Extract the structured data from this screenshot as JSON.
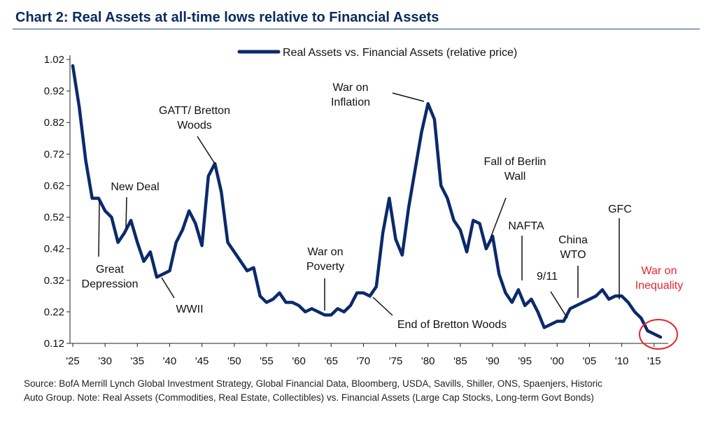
{
  "title": "Chart 2: Real Assets at all-time lows relative to Financial Assets",
  "source_line1": "Source: BofA Merrill Lynch Global Investment Strategy, Global Financial Data, Bloomberg, USDA, Savills, Shiller, ONS, Spaenjers, Historic",
  "source_line2": "Auto Group. Note: Real Assets (Commodities, Real Estate, Collectibles) vs. Financial Assets (Large Cap Stocks, Long-term Govt Bonds)",
  "colors": {
    "line": "#0b2a6b",
    "title": "#0b2a60",
    "highlight": "#e8252c"
  },
  "chart_data": {
    "type": "line",
    "title": "Chart 2: Real Assets at all-time lows relative to Financial Assets",
    "xlabel": "",
    "ylabel": "",
    "xlim": [
      1925,
      2016
    ],
    "ylim": [
      0.12,
      1.02
    ],
    "yticks": [
      1.02,
      0.92,
      0.82,
      0.72,
      0.62,
      0.52,
      0.42,
      0.32,
      0.22,
      0.12
    ],
    "ytick_labels": [
      "1.02",
      "0.92",
      "0.82",
      "0.72",
      "0.62",
      "0.52",
      "0.42",
      "0.32",
      "0.22",
      "0.12"
    ],
    "xticks": [
      1925,
      1930,
      1935,
      1940,
      1945,
      1950,
      1955,
      1960,
      1965,
      1970,
      1975,
      1980,
      1985,
      1990,
      1995,
      2000,
      2005,
      2010,
      2015
    ],
    "xtick_labels": [
      "'25",
      "'30",
      "'35",
      "'40",
      "'45",
      "'50",
      "'55",
      "'60",
      "'65",
      "'70",
      "'75",
      "'80",
      "'85",
      "'90",
      "'95",
      "'00",
      "'05",
      "'10",
      "'15"
    ],
    "grid": false,
    "legend_position": "top-center",
    "series": [
      {
        "name": "Real Assets vs. Financial Assets (relative price)",
        "x": [
          1925,
          1926,
          1927,
          1928,
          1929,
          1930,
          1931,
          1932,
          1933,
          1934,
          1935,
          1936,
          1937,
          1938,
          1939,
          1940,
          1941,
          1942,
          1943,
          1944,
          1945,
          1946,
          1947,
          1948,
          1949,
          1950,
          1951,
          1952,
          1953,
          1954,
          1955,
          1956,
          1957,
          1958,
          1959,
          1960,
          1961,
          1962,
          1963,
          1964,
          1965,
          1966,
          1967,
          1968,
          1969,
          1970,
          1971,
          1972,
          1973,
          1974,
          1975,
          1976,
          1977,
          1978,
          1979,
          1980,
          1981,
          1982,
          1983,
          1984,
          1985,
          1986,
          1987,
          1988,
          1989,
          1990,
          1991,
          1992,
          1993,
          1994,
          1995,
          1996,
          1997,
          1998,
          1999,
          2000,
          2001,
          2002,
          2003,
          2004,
          2005,
          2006,
          2007,
          2008,
          2009,
          2010,
          2011,
          2012,
          2013,
          2014,
          2015,
          2016
        ],
        "y": [
          1.0,
          0.87,
          0.7,
          0.58,
          0.58,
          0.54,
          0.52,
          0.44,
          0.47,
          0.51,
          0.44,
          0.38,
          0.41,
          0.33,
          0.34,
          0.35,
          0.44,
          0.48,
          0.54,
          0.5,
          0.43,
          0.65,
          0.69,
          0.6,
          0.44,
          0.41,
          0.38,
          0.35,
          0.36,
          0.27,
          0.25,
          0.26,
          0.28,
          0.25,
          0.25,
          0.24,
          0.22,
          0.23,
          0.22,
          0.21,
          0.21,
          0.23,
          0.22,
          0.24,
          0.28,
          0.28,
          0.27,
          0.3,
          0.47,
          0.58,
          0.45,
          0.4,
          0.55,
          0.67,
          0.79,
          0.88,
          0.83,
          0.62,
          0.58,
          0.51,
          0.48,
          0.41,
          0.51,
          0.5,
          0.42,
          0.46,
          0.34,
          0.28,
          0.25,
          0.29,
          0.24,
          0.26,
          0.22,
          0.17,
          0.18,
          0.19,
          0.19,
          0.23,
          0.24,
          0.25,
          0.26,
          0.27,
          0.29,
          0.26,
          0.27,
          0.27,
          0.25,
          0.22,
          0.2,
          0.16,
          0.15,
          0.14
        ]
      }
    ],
    "annotations": [
      {
        "text": "Great|Depression",
        "x": 1929,
        "y": 0.58
      },
      {
        "text": "New Deal",
        "x": 1933,
        "y": 0.44
      },
      {
        "text": "GATT/ Bretton|Woods",
        "x": 1947,
        "y": 0.69
      },
      {
        "text": "WWII",
        "x": 1941,
        "y": 0.35
      },
      {
        "text": "War on|Poverty",
        "x": 1964,
        "y": 0.21
      },
      {
        "text": "War on|Inflation",
        "x": 1980,
        "y": 0.88
      },
      {
        "text": "End of Bretton Woods",
        "x": 1972,
        "y": 0.28
      },
      {
        "text": "Fall of Berlin|Wall",
        "x": 1990,
        "y": 0.46
      },
      {
        "text": "NAFTA",
        "x": 1994,
        "y": 0.29
      },
      {
        "text": "9/11",
        "x": 2001,
        "y": 0.19
      },
      {
        "text": "China|WTO",
        "x": 2002,
        "y": 0.24
      },
      {
        "text": "GFC",
        "x": 2008,
        "y": 0.27
      },
      {
        "text": "War on|Inequality",
        "x": 2015,
        "y": 0.15,
        "highlight": true
      }
    ]
  }
}
